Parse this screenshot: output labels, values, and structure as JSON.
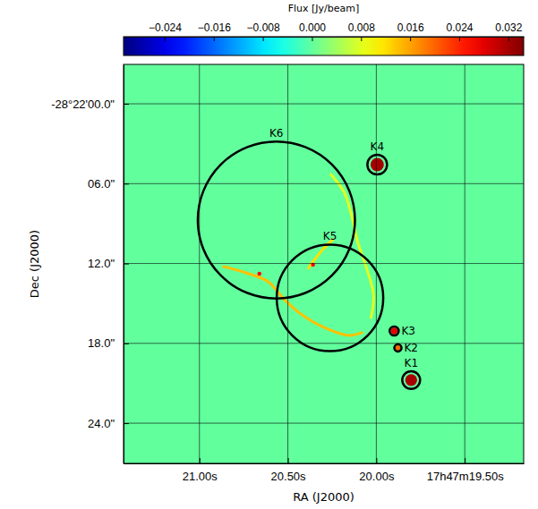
{
  "chart_data": {
    "type": "image",
    "xlabel": "RA (J2000)",
    "ylabel": "Dec (J2000)",
    "xlim": [
      21.429,
      19.167
    ],
    "ylim": [
      -2.96,
      27.02
    ],
    "xticks": [
      {
        "value": 21.0,
        "label": "21.00s"
      },
      {
        "value": 20.5,
        "label": "20.50s"
      },
      {
        "value": 20.0,
        "label": "20.00s"
      },
      {
        "value": 19.5,
        "label": "17h47m19.50s"
      }
    ],
    "yticks": [
      {
        "value": 0,
        "label": "-28°22'00.0\""
      },
      {
        "value": 6,
        "label": "06.0\""
      },
      {
        "value": 12,
        "label": "12.0\""
      },
      {
        "value": 18,
        "label": "18.0\""
      },
      {
        "value": 24,
        "label": "24.0\""
      }
    ],
    "grid": true,
    "background_flux": 0,
    "colorbar": {
      "label": "Flux [Jy/beam]",
      "range": [
        -0.0307,
        0.0345
      ],
      "ticks": [
        {
          "value": -0.024,
          "label": "−0.024"
        },
        {
          "value": -0.016,
          "label": "−0.016"
        },
        {
          "value": -0.008,
          "label": "−0.008"
        },
        {
          "value": 0,
          "label": "0.000"
        },
        0.008,
        0.016,
        0.024,
        0.032
      ]
    },
    "regions": [
      {
        "name": "K1",
        "ra": 19.803,
        "dec": 20.76,
        "radius": 0.67
      },
      {
        "name": "K2",
        "ra": 19.878,
        "dec": 18.34,
        "radius": 0.27
      },
      {
        "name": "K3",
        "ra": 19.899,
        "dec": 17.07,
        "radius": 0.34
      },
      {
        "name": "K4",
        "ra": 19.995,
        "dec": 4.57,
        "radius": 0.74
      },
      {
        "name": "K5",
        "ra": 20.262,
        "dec": 14.58,
        "radius": 4.0
      },
      {
        "name": "K6",
        "ra": 20.565,
        "dec": 8.73,
        "radius": 5.9
      }
    ],
    "sources": [
      {
        "ra": 19.995,
        "dec": 4.57,
        "size": 0.5,
        "flux": 0.032
      },
      {
        "ra": 19.803,
        "dec": 20.76,
        "size": 0.45,
        "flux": 0.032
      },
      {
        "ra": 19.899,
        "dec": 17.07,
        "size": 0.25,
        "flux": 0.028
      },
      {
        "ra": 19.878,
        "dec": 18.34,
        "size": 0.2,
        "flux": 0.02
      },
      {
        "ra": 20.661,
        "dec": 12.77,
        "size": 0.15,
        "flux": 0.026
      },
      {
        "ra": 20.358,
        "dec": 12.09,
        "size": 0.15,
        "flux": 0.026
      }
    ],
    "filaments": [
      {
        "flux": 0.014,
        "ra": [
          20.863,
          20.737,
          20.611,
          20.52,
          20.434,
          20.308,
          20.156,
          20.081
        ],
        "dec": [
          12.23,
          12.7,
          13.37,
          14.71,
          15.72,
          16.73,
          17.4,
          17.2
        ]
      },
      {
        "flux": 0.008,
        "ra": [
          20.257,
          20.182,
          20.141,
          20.106,
          20.055,
          20.015,
          20.03
        ],
        "dec": [
          5.31,
          6.65,
          8.33,
          10.35,
          12.36,
          14.38,
          16.06
        ]
      },
      {
        "flux": 0.012,
        "ra": [
          20.384,
          20.348,
          20.308,
          20.247
        ],
        "dec": [
          12.36,
          11.69,
          11.02,
          10.21
        ]
      }
    ]
  }
}
